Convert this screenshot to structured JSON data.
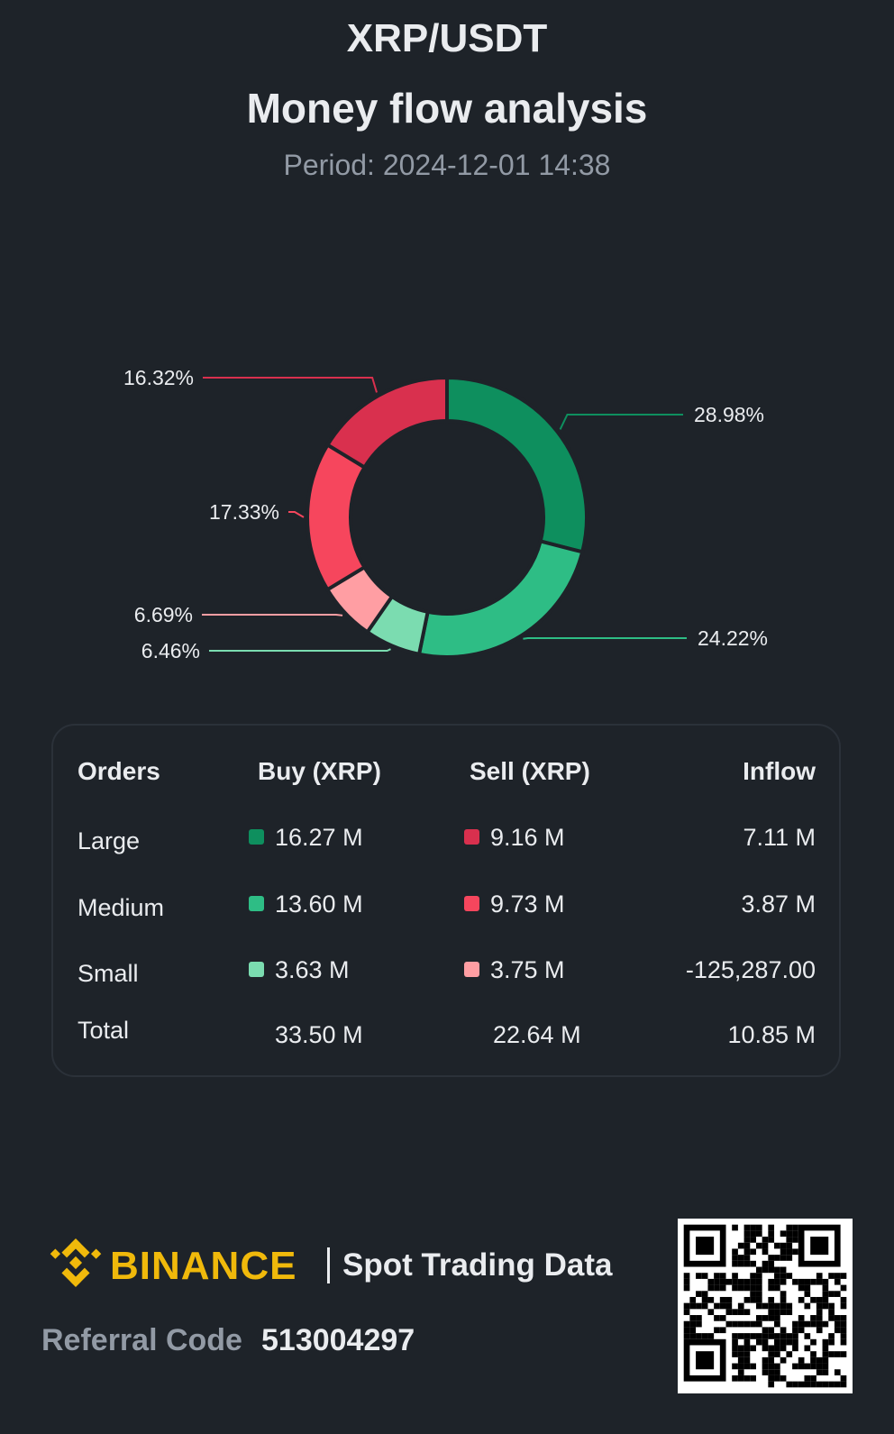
{
  "header": {
    "pair": "XRP/USDT",
    "subtitle": "Money flow analysis",
    "period": "Period: 2024-12-01 14:38"
  },
  "chart_data": {
    "type": "pie",
    "variant": "donut",
    "slices": [
      {
        "label": "28.98%",
        "value": 28.98,
        "color": "#0e8f5e"
      },
      {
        "label": "24.22%",
        "value": 24.22,
        "color": "#2ebd85"
      },
      {
        "label": "6.46%",
        "value": 6.46,
        "color": "#7bdcb0"
      },
      {
        "label": "6.69%",
        "value": 6.69,
        "color": "#ff9ea3"
      },
      {
        "label": "17.33%",
        "value": 17.33,
        "color": "#f6465d"
      },
      {
        "label": "16.32%",
        "value": 16.32,
        "color": "#d9304e"
      }
    ]
  },
  "table": {
    "headers": [
      "Orders",
      "Buy (XRP)",
      "Sell (XRP)",
      "Inflow"
    ],
    "rows": [
      {
        "name": "Large",
        "buy": "16.27 M",
        "sell": "9.16 M",
        "inflow": "7.11 M",
        "buy_color": "#0e8f5e",
        "sell_color": "#d9304e"
      },
      {
        "name": "Medium",
        "buy": "13.60 M",
        "sell": "9.73 M",
        "inflow": "3.87 M",
        "buy_color": "#2ebd85",
        "sell_color": "#f6465d"
      },
      {
        "name": "Small",
        "buy": "3.63 M",
        "sell": "3.75 M",
        "inflow": "-125,287.00",
        "buy_color": "#7bdcb0",
        "sell_color": "#ff9ea3"
      }
    ],
    "total": {
      "name": "Total",
      "buy": "33.50 M",
      "sell": "22.64 M",
      "inflow": "10.85 M"
    }
  },
  "footer": {
    "brand": "BINANCE",
    "product": "Spot Trading Data",
    "referral_label": "Referral Code",
    "referral_code": "513004297",
    "brand_color": "#f0b90b",
    "qr_icon": "qr-code-icon"
  }
}
